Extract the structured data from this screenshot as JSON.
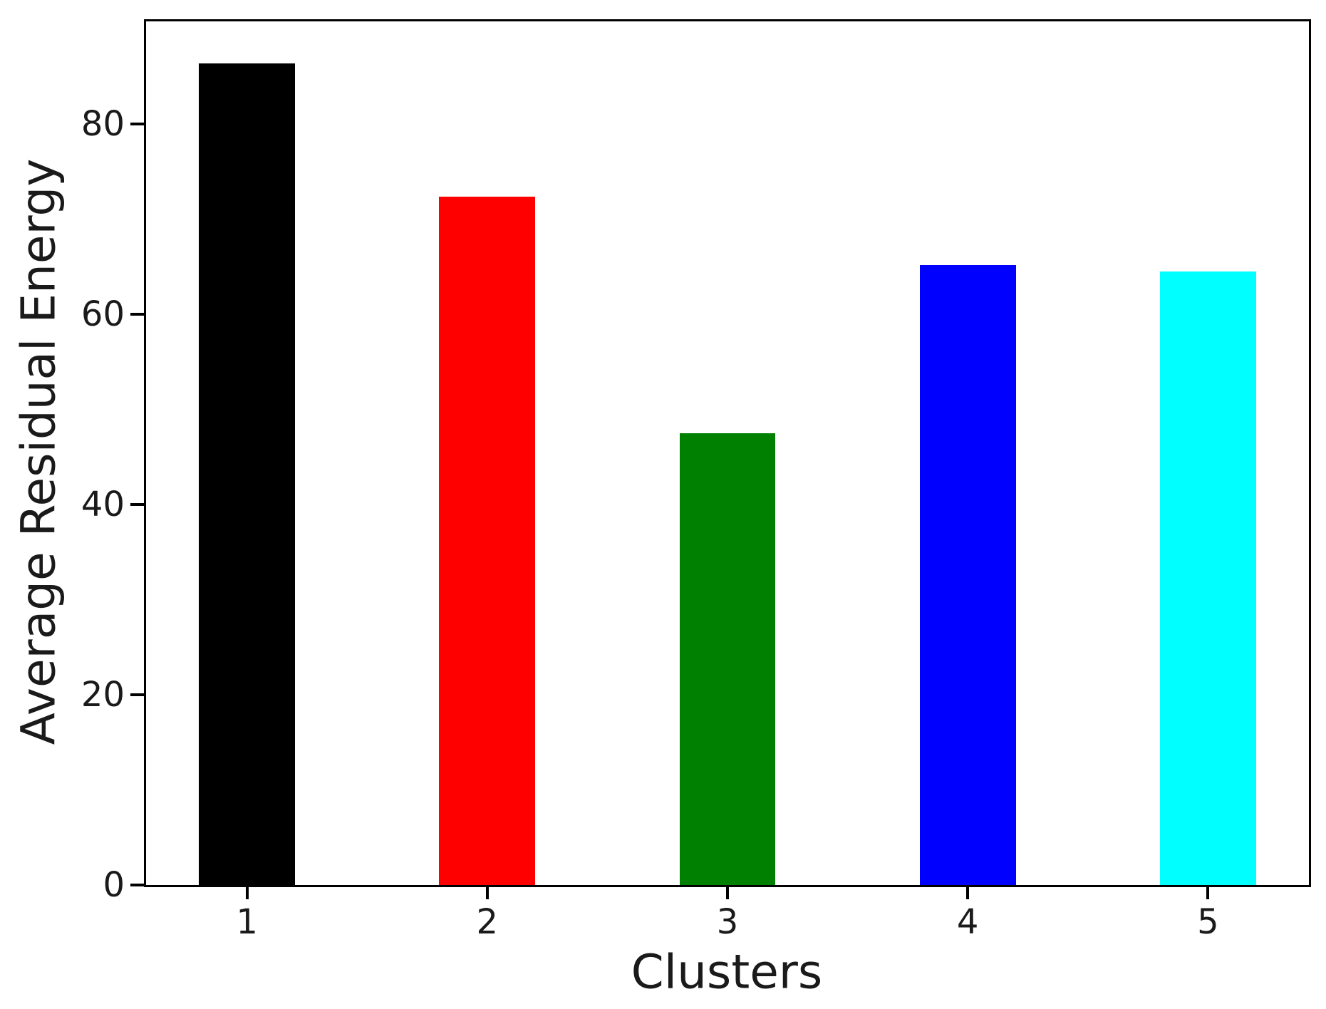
{
  "chart_data": {
    "type": "bar",
    "title": "",
    "xlabel": "Clusters",
    "ylabel": "Average Residual Energy",
    "categories": [
      "1",
      "2",
      "3",
      "4",
      "5"
    ],
    "x": [
      1,
      2,
      3,
      4,
      5
    ],
    "values": [
      86.4,
      72.4,
      47.5,
      65.2,
      64.5
    ],
    "bar_colors": [
      "#000000",
      "#ff0000",
      "#008000",
      "#0000ff",
      "#00ffff"
    ],
    "bar_width_units": 0.4,
    "xlim": [
      0.58,
      5.42
    ],
    "ylim": [
      0,
      90.8
    ],
    "yticks": [
      0,
      20,
      40,
      60,
      80
    ],
    "grid": false,
    "legend": null,
    "spine_color": "#000000",
    "background_color": "#ffffff"
  }
}
